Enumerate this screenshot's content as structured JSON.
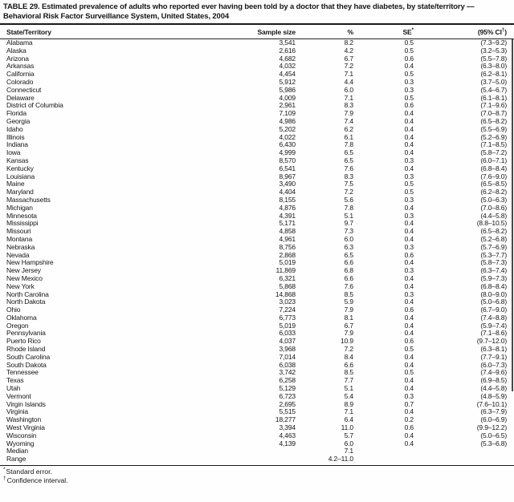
{
  "document": {
    "title": "TABLE 29. Estimated prevalence of adults who reported ever having been told by a doctor that they have diabetes, by state/territory — Behavioral Risk Factor Surveillance System, United States, 2004"
  },
  "table": {
    "columns": {
      "state": "State/Territory",
      "sample": "Sample size",
      "pct": "%",
      "se": {
        "label": "SE",
        "marker": "*"
      },
      "ci": {
        "open": "(95% CI",
        "marker": "†",
        "close": ")"
      }
    },
    "rows": [
      {
        "state": "Alabama",
        "sample_size": "3,541",
        "pct": "8.2",
        "se": "0.5",
        "ci": "(7.3–9.2)"
      },
      {
        "state": "Alaska",
        "sample_size": "2,616",
        "pct": "4.2",
        "se": "0.5",
        "ci": "(3.2–5.3)"
      },
      {
        "state": "Arizona",
        "sample_size": "4,682",
        "pct": "6.7",
        "se": "0.6",
        "ci": "(5.5–7.8)"
      },
      {
        "state": "Arkansas",
        "sample_size": "4,032",
        "pct": "7.2",
        "se": "0.4",
        "ci": "(6.3–8.0)"
      },
      {
        "state": "California",
        "sample_size": "4,454",
        "pct": "7.1",
        "se": "0.5",
        "ci": "(6.2–8.1)"
      },
      {
        "state": "Colorado",
        "sample_size": "5,912",
        "pct": "4.4",
        "se": "0.3",
        "ci": "(3.7–5.0)"
      },
      {
        "state": "Connecticut",
        "sample_size": "5,986",
        "pct": "6.0",
        "se": "0.3",
        "ci": "(5.4–6.7)"
      },
      {
        "state": "Delaware",
        "sample_size": "4,009",
        "pct": "7.1",
        "se": "0.5",
        "ci": "(6.1–8.1)"
      },
      {
        "state": "District of Columbia",
        "sample_size": "2,961",
        "pct": "8.3",
        "se": "0.6",
        "ci": "(7.1–9.6)"
      },
      {
        "state": "Florida",
        "sample_size": "7,109",
        "pct": "7.9",
        "se": "0.4",
        "ci": "(7.0–8.7)"
      },
      {
        "state": "Georgia",
        "sample_size": "4,986",
        "pct": "7.4",
        "se": "0.4",
        "ci": "(6.5–8.2)"
      },
      {
        "state": "Idaho",
        "sample_size": "5,202",
        "pct": "6.2",
        "se": "0.4",
        "ci": "(5.5–6.9)"
      },
      {
        "state": "Illinois",
        "sample_size": "4,022",
        "pct": "6.1",
        "se": "0.4",
        "ci": "(5.2–6.9)"
      },
      {
        "state": "Indiana",
        "sample_size": "6,430",
        "pct": "7.8",
        "se": "0.4",
        "ci": "(7.1–8.5)"
      },
      {
        "state": "Iowa",
        "sample_size": "4,999",
        "pct": "6.5",
        "se": "0.4",
        "ci": "(5.8–7.2)"
      },
      {
        "state": "Kansas",
        "sample_size": "8,570",
        "pct": "6.5",
        "se": "0.3",
        "ci": "(6.0–7.1)"
      },
      {
        "state": "Kentucky",
        "sample_size": "6,541",
        "pct": "7.6",
        "se": "0.4",
        "ci": "(6.8–8.4)"
      },
      {
        "state": "Louisiana",
        "sample_size": "8,967",
        "pct": "8.3",
        "se": "0.3",
        "ci": "(7.6–9.0)"
      },
      {
        "state": "Maine",
        "sample_size": "3,490",
        "pct": "7.5",
        "se": "0.5",
        "ci": "(6.5–8.5)"
      },
      {
        "state": "Maryland",
        "sample_size": "4,404",
        "pct": "7.2",
        "se": "0.5",
        "ci": "(6.2–8.2)"
      },
      {
        "state": "Massachusetts",
        "sample_size": "8,155",
        "pct": "5.6",
        "se": "0.3",
        "ci": "(5.0–6.3)"
      },
      {
        "state": "Michigan",
        "sample_size": "4,876",
        "pct": "7.8",
        "se": "0.4",
        "ci": "(7.0–8.6)"
      },
      {
        "state": "Minnesota",
        "sample_size": "4,391",
        "pct": "5.1",
        "se": "0.3",
        "ci": "(4.4–5.8)"
      },
      {
        "state": "Mississippi",
        "sample_size": "5,171",
        "pct": "9.7",
        "se": "0.4",
        "ci": "(8.8–10.5)"
      },
      {
        "state": "Missouri",
        "sample_size": "4,858",
        "pct": "7.3",
        "se": "0.4",
        "ci": "(6.5–8.2)"
      },
      {
        "state": "Montana",
        "sample_size": "4,961",
        "pct": "6.0",
        "se": "0.4",
        "ci": "(5.2–6.8)"
      },
      {
        "state": "Nebraska",
        "sample_size": "8,756",
        "pct": "6.3",
        "se": "0.3",
        "ci": "(5.7–6.9)"
      },
      {
        "state": "Nevada",
        "sample_size": "2,868",
        "pct": "6.5",
        "se": "0.6",
        "ci": "(5.3–7.7)"
      },
      {
        "state": "New Hampshire",
        "sample_size": "5,019",
        "pct": "6.6",
        "se": "0.4",
        "ci": "(5.8–7.3)"
      },
      {
        "state": "New Jersey",
        "sample_size": "11,869",
        "pct": "6.8",
        "se": "0.3",
        "ci": "(6.3–7.4)"
      },
      {
        "state": "New Mexico",
        "sample_size": "6,321",
        "pct": "6.6",
        "se": "0.4",
        "ci": "(5.9–7.3)"
      },
      {
        "state": "New York",
        "sample_size": "5,868",
        "pct": "7.6",
        "se": "0.4",
        "ci": "(6.8–8.4)"
      },
      {
        "state": "North Carolina",
        "sample_size": "14,868",
        "pct": "8.5",
        "se": "0.3",
        "ci": "(8.0–9.0)"
      },
      {
        "state": "North Dakota",
        "sample_size": "3,023",
        "pct": "5.9",
        "se": "0.4",
        "ci": "(5.0–6.8)"
      },
      {
        "state": "Ohio",
        "sample_size": "7,224",
        "pct": "7.9",
        "se": "0.6",
        "ci": "(6.7–9.0)"
      },
      {
        "state": "Oklahoma",
        "sample_size": "6,773",
        "pct": "8.1",
        "se": "0.4",
        "ci": "(7.4–8.8)"
      },
      {
        "state": "Oregon",
        "sample_size": "5,019",
        "pct": "6.7",
        "se": "0.4",
        "ci": "(5.9–7.4)"
      },
      {
        "state": "Pennsylvania",
        "sample_size": "6,033",
        "pct": "7.9",
        "se": "0.4",
        "ci": "(7.1–8.6)"
      },
      {
        "state": "Puerto Rico",
        "sample_size": "4,037",
        "pct": "10.9",
        "se": "0.6",
        "ci": "(9.7–12.0)"
      },
      {
        "state": "Rhode Island",
        "sample_size": "3,968",
        "pct": "7.2",
        "se": "0.5",
        "ci": "(6.3–8.1)"
      },
      {
        "state": "South Carolina",
        "sample_size": "7,014",
        "pct": "8.4",
        "se": "0.4",
        "ci": "(7.7–9.1)"
      },
      {
        "state": "South Dakota",
        "sample_size": "6,038",
        "pct": "6.6",
        "se": "0.4",
        "ci": "(6.0–7.3)"
      },
      {
        "state": "Tennessee",
        "sample_size": "3,742",
        "pct": "8.5",
        "se": "0.5",
        "ci": "(7.4–9.6)"
      },
      {
        "state": "Texas",
        "sample_size": "6,258",
        "pct": "7.7",
        "se": "0.4",
        "ci": "(6.9–8.5)"
      },
      {
        "state": "Utah",
        "sample_size": "5,129",
        "pct": "5.1",
        "se": "0.4",
        "ci": "(4.4–5.8)"
      },
      {
        "state": "Vermont",
        "sample_size": "6,723",
        "pct": "5.4",
        "se": "0.3",
        "ci": "(4.8–5.9)"
      },
      {
        "state": "Virgin Islands",
        "sample_size": "2,695",
        "pct": "8.9",
        "se": "0.7",
        "ci": "(7.6–10.1)"
      },
      {
        "state": "Virginia",
        "sample_size": "5,515",
        "pct": "7.1",
        "se": "0.4",
        "ci": "(6.3–7.9)"
      },
      {
        "state": "Washington",
        "sample_size": "18,277",
        "pct": "6.4",
        "se": "0.2",
        "ci": "(6.0–6.9)"
      },
      {
        "state": "West Virginia",
        "sample_size": "3,394",
        "pct": "11.0",
        "se": "0.6",
        "ci": "(9.9–12.2)"
      },
      {
        "state": "Wisconsin",
        "sample_size": "4,463",
        "pct": "5.7",
        "se": "0.4",
        "ci": "(5.0–6.5)"
      },
      {
        "state": "Wyoming",
        "sample_size": "4,139",
        "pct": "6.0",
        "se": "0.4",
        "ci": "(5.3–6.8)"
      },
      {
        "state": "Median",
        "sample_size": "",
        "pct": "7.1",
        "se": "",
        "ci": ""
      },
      {
        "state": "Range",
        "sample_size": "",
        "pct": "4.2–11.0",
        "se": "",
        "ci": ""
      }
    ],
    "footnotes": [
      {
        "marker": "*",
        "text": "Standard error."
      },
      {
        "marker": "†",
        "text": "Confidence interval."
      }
    ]
  }
}
